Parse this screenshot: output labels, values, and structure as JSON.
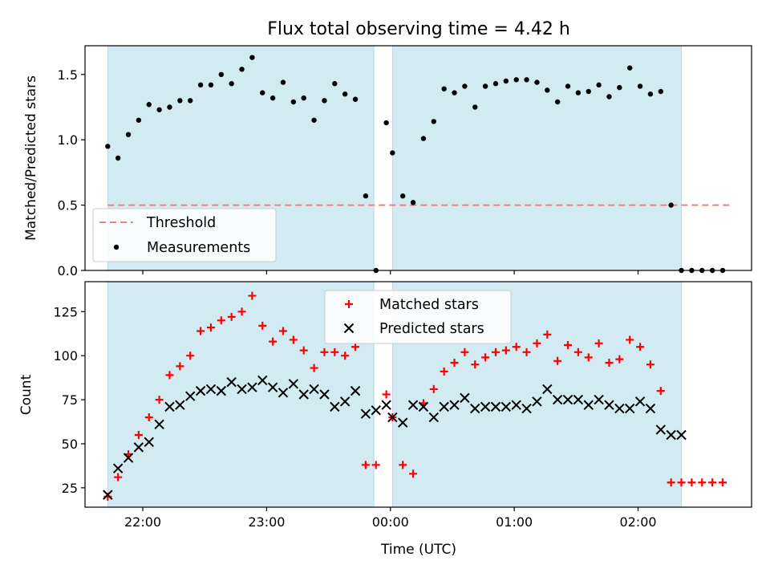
{
  "chart_data": [
    {
      "type": "scatter",
      "title": "Flux total observing time = 4.42 h",
      "xlabel": "",
      "ylabel": "Matched/Predicted stars",
      "ylim": [
        0,
        1.72
      ],
      "yticks": [
        "0.0",
        "0.5",
        "1.0",
        "1.5"
      ],
      "xlim": [
        "21:32",
        "02:55"
      ],
      "shaded_intervals": [
        [
          "21:43",
          "23:52"
        ],
        [
          "00:01",
          "02:21"
        ]
      ],
      "threshold": {
        "name": "Threshold",
        "value": 0.5,
        "color": "#f08080",
        "from": "21:43",
        "to": "02:45"
      },
      "series": [
        {
          "name": "Measurements",
          "marker": "dot",
          "color": "#000000",
          "x": [
            "21:43",
            "21:48",
            "21:53",
            "21:58",
            "22:03",
            "22:08",
            "22:13",
            "22:18",
            "22:23",
            "22:28",
            "22:33",
            "22:38",
            "22:43",
            "22:48",
            "22:53",
            "22:58",
            "23:03",
            "23:08",
            "23:13",
            "23:18",
            "23:23",
            "23:28",
            "23:33",
            "23:38",
            "23:43",
            "23:48",
            "23:53",
            "23:58",
            "00:01",
            "00:06",
            "00:11",
            "00:16",
            "00:21",
            "00:26",
            "00:31",
            "00:36",
            "00:41",
            "00:46",
            "00:51",
            "00:56",
            "01:01",
            "01:06",
            "01:11",
            "01:16",
            "01:21",
            "01:26",
            "01:31",
            "01:36",
            "01:41",
            "01:46",
            "01:51",
            "01:56",
            "02:01",
            "02:06",
            "02:11",
            "02:16",
            "02:21",
            "02:26",
            "02:31",
            "02:36",
            "02:41"
          ],
          "y": [
            0.95,
            0.86,
            1.04,
            1.15,
            1.27,
            1.23,
            1.25,
            1.3,
            1.3,
            1.42,
            1.42,
            1.5,
            1.43,
            1.54,
            1.63,
            1.36,
            1.32,
            1.44,
            1.29,
            1.32,
            1.15,
            1.3,
            1.43,
            1.35,
            1.31,
            0.57,
            0.0,
            1.13,
            0.9,
            0.57,
            0.52,
            1.01,
            1.14,
            1.39,
            1.36,
            1.41,
            1.25,
            1.41,
            1.43,
            1.45,
            1.46,
            1.46,
            1.44,
            1.38,
            1.29,
            1.41,
            1.36,
            1.37,
            1.42,
            1.33,
            1.4,
            1.55,
            1.41,
            1.35,
            1.37,
            0.5,
            0.0,
            0.0,
            0.0,
            0.0,
            0.0
          ]
        }
      ],
      "legend": [
        "Threshold",
        "Measurements"
      ],
      "legend_position": "lower-left",
      "shade_color": "#add8e6"
    },
    {
      "type": "scatter",
      "title": "",
      "xlabel": "Time (UTC)",
      "ylabel": "Count",
      "ylim": [
        14,
        142
      ],
      "yticks": [
        "25",
        "50",
        "75",
        "100",
        "125"
      ],
      "xticks": [
        "22:00",
        "23:00",
        "00:00",
        "01:00",
        "02:00"
      ],
      "series": [
        {
          "name": "Matched stars",
          "marker": "plus",
          "color": "#ff0000",
          "x": [
            "21:43",
            "21:48",
            "21:53",
            "21:58",
            "22:03",
            "22:08",
            "22:13",
            "22:18",
            "22:23",
            "22:28",
            "22:33",
            "22:38",
            "22:43",
            "22:48",
            "22:53",
            "22:58",
            "23:03",
            "23:08",
            "23:13",
            "23:18",
            "23:23",
            "23:28",
            "23:33",
            "23:38",
            "23:43",
            "23:48",
            "23:53",
            "23:58",
            "00:01",
            "00:06",
            "00:11",
            "00:16",
            "00:21",
            "00:26",
            "00:31",
            "00:36",
            "00:41",
            "00:46",
            "00:51",
            "00:56",
            "01:01",
            "01:06",
            "01:11",
            "01:16",
            "01:21",
            "01:26",
            "01:31",
            "01:36",
            "01:41",
            "01:46",
            "01:51",
            "01:56",
            "02:01",
            "02:06",
            "02:11",
            "02:16",
            "02:21",
            "02:26",
            "02:31",
            "02:36",
            "02:41"
          ],
          "y": [
            20,
            31,
            44,
            55,
            65,
            75,
            89,
            94,
            100,
            114,
            116,
            120,
            122,
            125,
            134,
            117,
            108,
            114,
            109,
            103,
            93,
            102,
            102,
            100,
            105,
            38,
            38,
            78,
            65,
            38,
            33,
            73,
            81,
            91,
            96,
            102,
            95,
            99,
            102,
            103,
            105,
            102,
            107,
            112,
            97,
            106,
            102,
            99,
            107,
            96,
            98,
            109,
            105,
            95,
            80,
            28,
            28,
            28,
            28,
            28,
            28
          ],
          "x_override": null
        },
        {
          "name": "Predicted stars",
          "marker": "x",
          "color": "#000000",
          "x": [
            "21:43",
            "21:48",
            "21:53",
            "21:58",
            "22:03",
            "22:08",
            "22:13",
            "22:18",
            "22:23",
            "22:28",
            "22:33",
            "22:38",
            "22:43",
            "22:48",
            "22:53",
            "22:58",
            "23:03",
            "23:08",
            "23:13",
            "23:18",
            "23:23",
            "23:28",
            "23:33",
            "23:38",
            "23:43",
            "23:48",
            "23:53",
            "23:58",
            "00:01",
            "00:06",
            "00:11",
            "00:16",
            "00:21",
            "00:26",
            "00:31",
            "00:36",
            "00:41",
            "00:46",
            "00:51",
            "00:56",
            "01:01",
            "01:06",
            "01:11",
            "01:16",
            "01:21",
            "01:26",
            "01:31",
            "01:36",
            "01:41",
            "01:46",
            "01:51",
            "01:56",
            "02:01",
            "02:06",
            "02:11",
            "02:16",
            "02:21"
          ],
          "y": [
            21,
            36,
            42,
            48,
            51,
            61,
            71,
            72,
            77,
            80,
            81,
            80,
            85,
            81,
            82,
            86,
            82,
            79,
            84,
            78,
            81,
            78,
            71,
            74,
            80,
            67,
            69,
            72,
            65,
            62,
            72,
            71,
            65,
            71,
            72,
            76,
            70,
            71,
            71,
            71,
            72,
            70,
            74,
            81,
            75,
            75,
            75,
            72,
            75,
            72,
            70,
            70,
            74,
            70,
            58,
            55,
            55
          ]
        }
      ],
      "legend": [
        "Matched stars",
        "Predicted stars"
      ],
      "legend_position": "upper-center",
      "shade_color": "#add8e6"
    }
  ]
}
